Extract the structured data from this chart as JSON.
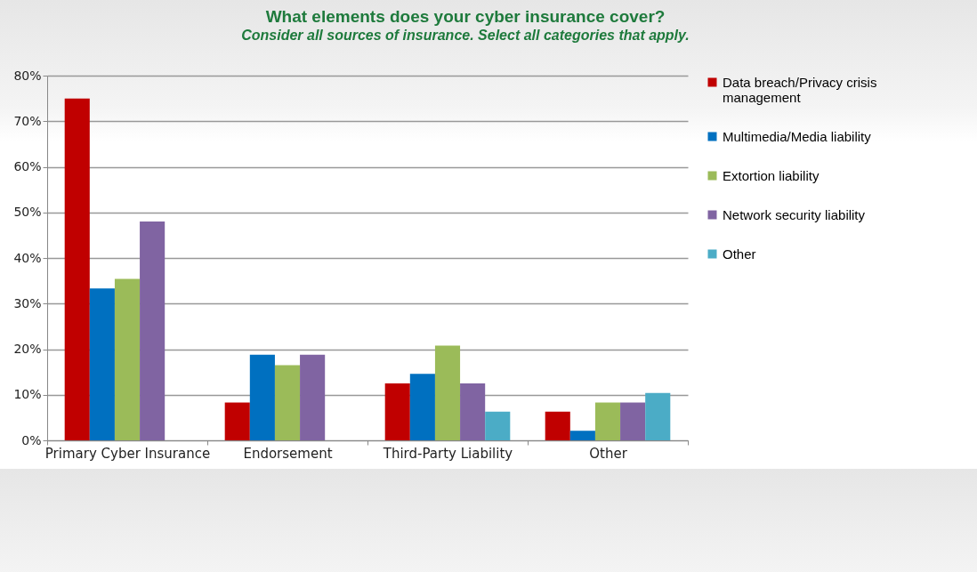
{
  "chart_data": {
    "type": "bar",
    "title": "What elements does your cyber insurance cover?",
    "subtitle": "Consider all sources of insurance. Select all categories that apply.",
    "categories": [
      "Primary Cyber Insurance",
      "Endorsement",
      "Third-Party Liability",
      "Other"
    ],
    "series": [
      {
        "name": "Data breach/Privacy crisis management",
        "color": "#c00000",
        "values": [
          75,
          8.3,
          12.5,
          6.3
        ]
      },
      {
        "name": "Multimedia/Media liability",
        "color": "#0070c0",
        "values": [
          33.3,
          18.8,
          14.6,
          2.1
        ]
      },
      {
        "name": "Extortion liability",
        "color": "#9bbb59",
        "values": [
          35.4,
          16.5,
          20.8,
          8.3
        ]
      },
      {
        "name": "Network security liability",
        "color": "#8064a2",
        "values": [
          48,
          18.8,
          12.5,
          8.3
        ]
      },
      {
        "name": "Other",
        "color": "#4bacc6",
        "values": [
          null,
          null,
          6.3,
          10.4
        ]
      }
    ],
    "ylim": [
      0,
      80
    ],
    "yticks": [
      {
        "value": 0,
        "label": "0%"
      },
      {
        "value": 10,
        "label": "10%"
      },
      {
        "value": 20,
        "label": "20%"
      },
      {
        "value": 30,
        "label": "30%"
      },
      {
        "value": 40,
        "label": "40%"
      },
      {
        "value": 50,
        "label": "50%"
      },
      {
        "value": 60,
        "label": "60%"
      },
      {
        "value": 70,
        "label": "70%"
      },
      {
        "value": 80,
        "label": "80%"
      }
    ],
    "grid": "y",
    "legend": "right"
  }
}
